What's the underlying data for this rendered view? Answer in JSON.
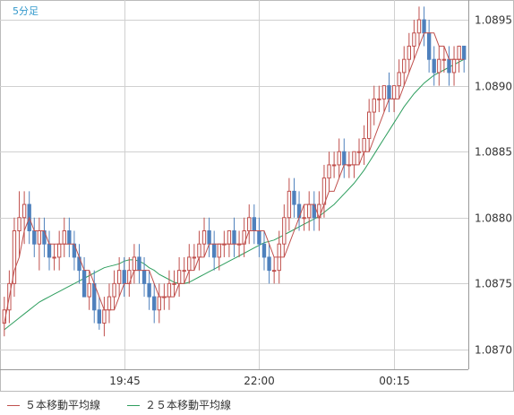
{
  "timeframe_label": "5分足",
  "legend": [
    {
      "label": "５本移動平均線",
      "color": "#c0504d"
    },
    {
      "label": "２５本移動平均線",
      "color": "#2e9e5e"
    }
  ],
  "colors": {
    "up": "#c0504d",
    "down": "#4f81bd",
    "ma5": "#c0504d",
    "ma25": "#2e9e5e",
    "grid": "#d0d0d0",
    "frame": "#999999"
  },
  "chart_data": {
    "type": "candlestick",
    "title": "",
    "xlabel": "",
    "ylabel": "",
    "ylim": [
      1.08685,
      1.08965
    ],
    "y_ticks": [
      "1.0870",
      "1.0875",
      "1.0880",
      "1.0885",
      "1.0890",
      "1.0895"
    ],
    "x_tick_labels": [
      {
        "index": 24,
        "label": "19:45"
      },
      {
        "index": 51,
        "label": "22:00"
      },
      {
        "index": 78,
        "label": "00:15"
      }
    ],
    "grid": true,
    "candles": [
      [
        1.0872,
        1.0874,
        1.0871,
        1.0873
      ],
      [
        1.0873,
        1.0876,
        1.0872,
        1.0875
      ],
      [
        1.0875,
        1.088,
        1.0874,
        1.0879
      ],
      [
        1.0879,
        1.0882,
        1.0877,
        1.088
      ],
      [
        1.088,
        1.0882,
        1.0878,
        1.0881
      ],
      [
        1.0881,
        1.0882,
        1.0878,
        1.0879
      ],
      [
        1.0879,
        1.088,
        1.0877,
        1.0878
      ],
      [
        1.0878,
        1.088,
        1.0876,
        1.0879
      ],
      [
        1.0879,
        1.088,
        1.0877,
        1.0878
      ],
      [
        1.0878,
        1.0879,
        1.0876,
        1.0877
      ],
      [
        1.0877,
        1.0878,
        1.0876,
        1.0877
      ],
      [
        1.0877,
        1.0879,
        1.0876,
        1.0878
      ],
      [
        1.0878,
        1.088,
        1.0877,
        1.0879
      ],
      [
        1.0879,
        1.088,
        1.0877,
        1.0878
      ],
      [
        1.0878,
        1.0879,
        1.0876,
        1.0877
      ],
      [
        1.0877,
        1.0878,
        1.0875,
        1.0876
      ],
      [
        1.0876,
        1.0877,
        1.0874,
        1.0874
      ],
      [
        1.0874,
        1.0876,
        1.0873,
        1.0875
      ],
      [
        1.0875,
        1.0876,
        1.0872,
        1.0873
      ],
      [
        1.0873,
        1.0874,
        1.08715,
        1.0872
      ],
      [
        1.0872,
        1.0874,
        1.0871,
        1.0873
      ],
      [
        1.0873,
        1.0875,
        1.0872,
        1.0874
      ],
      [
        1.0874,
        1.0876,
        1.0873,
        1.0875
      ],
      [
        1.0875,
        1.0877,
        1.0874,
        1.0876
      ],
      [
        1.0876,
        1.0877,
        1.0874,
        1.0875
      ],
      [
        1.0875,
        1.0877,
        1.0874,
        1.0876
      ],
      [
        1.0876,
        1.0878,
        1.0875,
        1.0877
      ],
      [
        1.0877,
        1.0878,
        1.0875,
        1.0876
      ],
      [
        1.0876,
        1.0877,
        1.0874,
        1.0875
      ],
      [
        1.0875,
        1.0876,
        1.0873,
        1.0874
      ],
      [
        1.0874,
        1.0875,
        1.0872,
        1.0873
      ],
      [
        1.0873,
        1.0875,
        1.0872,
        1.0874
      ],
      [
        1.0874,
        1.0875,
        1.0873,
        1.0874
      ],
      [
        1.0874,
        1.0876,
        1.0873,
        1.0875
      ],
      [
        1.0875,
        1.0876,
        1.0874,
        1.0875
      ],
      [
        1.0875,
        1.0877,
        1.0874,
        1.0876
      ],
      [
        1.0876,
        1.0877,
        1.0875,
        1.0876
      ],
      [
        1.0876,
        1.0878,
        1.0875,
        1.0877
      ],
      [
        1.0877,
        1.0878,
        1.0876,
        1.0877
      ],
      [
        1.0877,
        1.0879,
        1.0876,
        1.0878
      ],
      [
        1.0878,
        1.088,
        1.0877,
        1.0879
      ],
      [
        1.0879,
        1.088,
        1.0877,
        1.0878
      ],
      [
        1.0878,
        1.0879,
        1.0876,
        1.0877
      ],
      [
        1.0877,
        1.0878,
        1.0876,
        1.0878
      ],
      [
        1.0878,
        1.0879,
        1.0877,
        1.0878
      ],
      [
        1.0878,
        1.0879,
        1.0877,
        1.0879
      ],
      [
        1.0879,
        1.088,
        1.0877,
        1.0878
      ],
      [
        1.0878,
        1.0879,
        1.0877,
        1.0878
      ],
      [
        1.0878,
        1.088,
        1.0877,
        1.0879
      ],
      [
        1.0879,
        1.0881,
        1.0878,
        1.088
      ],
      [
        1.088,
        1.0881,
        1.0878,
        1.0879
      ],
      [
        1.0879,
        1.088,
        1.0877,
        1.0878
      ],
      [
        1.0878,
        1.0879,
        1.0876,
        1.0877
      ],
      [
        1.0877,
        1.0878,
        1.0875,
        1.0876
      ],
      [
        1.0876,
        1.0877,
        1.0875,
        1.0876
      ],
      [
        1.0876,
        1.0879,
        1.0875,
        1.0878
      ],
      [
        1.0878,
        1.0881,
        1.0877,
        1.088
      ],
      [
        1.088,
        1.0883,
        1.0879,
        1.0882
      ],
      [
        1.0882,
        1.0883,
        1.088,
        1.0881
      ],
      [
        1.0881,
        1.0882,
        1.0879,
        1.088
      ],
      [
        1.088,
        1.0881,
        1.0879,
        1.088
      ],
      [
        1.088,
        1.0882,
        1.0879,
        1.0881
      ],
      [
        1.0881,
        1.0882,
        1.0879,
        1.088
      ],
      [
        1.088,
        1.0882,
        1.0879,
        1.0881
      ],
      [
        1.0881,
        1.0884,
        1.088,
        1.0883
      ],
      [
        1.0883,
        1.0885,
        1.0882,
        1.0884
      ],
      [
        1.0884,
        1.0885,
        1.0883,
        1.0884
      ],
      [
        1.0884,
        1.0886,
        1.0883,
        1.0885
      ],
      [
        1.0885,
        1.0886,
        1.0883,
        1.0884
      ],
      [
        1.0884,
        1.0885,
        1.0883,
        1.0884
      ],
      [
        1.0884,
        1.0885,
        1.0883,
        1.0885
      ],
      [
        1.0885,
        1.0886,
        1.0884,
        1.0885
      ],
      [
        1.0885,
        1.0887,
        1.0884,
        1.0886
      ],
      [
        1.0886,
        1.0889,
        1.0885,
        1.0888
      ],
      [
        1.0888,
        1.089,
        1.0887,
        1.0889
      ],
      [
        1.0889,
        1.089,
        1.0888,
        1.0889
      ],
      [
        1.0889,
        1.089,
        1.0888,
        1.089
      ],
      [
        1.089,
        1.0891,
        1.0888,
        1.0889
      ],
      [
        1.0889,
        1.089,
        1.0888,
        1.089
      ],
      [
        1.089,
        1.0892,
        1.0889,
        1.0891
      ],
      [
        1.0891,
        1.0893,
        1.089,
        1.0892
      ],
      [
        1.0892,
        1.0894,
        1.0891,
        1.0893
      ],
      [
        1.0893,
        1.0895,
        1.0892,
        1.0894
      ],
      [
        1.0894,
        1.0896,
        1.0893,
        1.0895
      ],
      [
        1.0895,
        1.0896,
        1.0893,
        1.0894
      ],
      [
        1.0894,
        1.0895,
        1.0891,
        1.0892
      ],
      [
        1.0892,
        1.0893,
        1.089,
        1.0891
      ],
      [
        1.0891,
        1.0893,
        1.089,
        1.0892
      ],
      [
        1.0892,
        1.0893,
        1.0891,
        1.0892
      ],
      [
        1.0892,
        1.0893,
        1.089,
        1.0891
      ],
      [
        1.0891,
        1.0893,
        1.089,
        1.0892
      ],
      [
        1.0892,
        1.0893,
        1.0891,
        1.0893
      ],
      [
        1.0893,
        1.0893,
        1.0891,
        1.0892
      ]
    ],
    "ma5": [
      1.0872,
      1.0874,
      1.0876,
      1.0877,
      1.0879,
      1.088,
      1.0879,
      1.0879,
      1.0879,
      1.0878,
      1.0878,
      1.0878,
      1.0878,
      1.0878,
      1.0878,
      1.0877,
      1.0876,
      1.0876,
      1.0875,
      1.0874,
      1.0873,
      1.0873,
      1.0873,
      1.0874,
      1.0875,
      1.0875,
      1.0876,
      1.0876,
      1.0876,
      1.0876,
      1.0875,
      1.0874,
      1.0874,
      1.0874,
      1.0874,
      1.0875,
      1.0875,
      1.0876,
      1.0876,
      1.0877,
      1.0877,
      1.0878,
      1.0878,
      1.0878,
      1.0878,
      1.0878,
      1.0878,
      1.0878,
      1.0878,
      1.0879,
      1.0879,
      1.0879,
      1.0879,
      1.0878,
      1.0877,
      1.0877,
      1.0877,
      1.0878,
      1.0879,
      1.088,
      1.0881,
      1.0881,
      1.0881,
      1.088,
      1.0881,
      1.0882,
      1.0882,
      1.0883,
      1.0884,
      1.0884,
      1.0884,
      1.0884,
      1.0885,
      1.0885,
      1.0886,
      1.0887,
      1.0888,
      1.0889,
      1.0889,
      1.0889,
      1.089,
      1.0891,
      1.0892,
      1.0893,
      1.0894,
      1.0894,
      1.0894,
      1.0893,
      1.0893,
      1.0892,
      1.0892,
      1.0892,
      1.0892
    ],
    "ma25": [
      1.08715,
      1.08718,
      1.08721,
      1.08724,
      1.08727,
      1.0873,
      1.08733,
      1.08736,
      1.08738,
      1.0874,
      1.08742,
      1.08744,
      1.08746,
      1.08748,
      1.0875,
      1.08752,
      1.08754,
      1.08756,
      1.08758,
      1.0876,
      1.08762,
      1.08763,
      1.08764,
      1.08765,
      1.08767,
      1.08768,
      1.08768,
      1.08767,
      1.08765,
      1.08762,
      1.0876,
      1.08757,
      1.08755,
      1.08753,
      1.08751,
      1.0875,
      1.0875,
      1.08751,
      1.08753,
      1.08755,
      1.08757,
      1.08759,
      1.08761,
      1.08763,
      1.08765,
      1.08767,
      1.08769,
      1.08771,
      1.08773,
      1.08775,
      1.08777,
      1.08779,
      1.08781,
      1.08782,
      1.08783,
      1.08785,
      1.08787,
      1.08789,
      1.08791,
      1.08793,
      1.08795,
      1.08797,
      1.08799,
      1.08801,
      1.08804,
      1.08807,
      1.0881,
      1.08814,
      1.08818,
      1.08822,
      1.08826,
      1.08831,
      1.08836,
      1.08842,
      1.08848,
      1.08854,
      1.0886,
      1.08866,
      1.08872,
      1.08878,
      1.08884,
      1.08889,
      1.08894,
      1.08898,
      1.08902,
      1.08905,
      1.08908,
      1.0891,
      1.08912,
      1.08914,
      1.08916,
      1.08918,
      1.0892
    ]
  }
}
